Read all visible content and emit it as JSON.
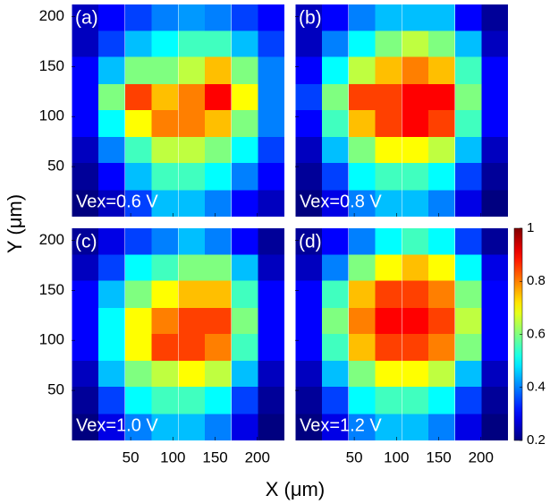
{
  "chart_data": [
    {
      "type": "heatmap",
      "label": "(a)",
      "annotation": "Vex=0.6 V",
      "colormap": "jet",
      "x": [
        -4,
        27,
        59,
        90,
        122,
        153,
        185,
        216
      ],
      "y": [
        199,
        172,
        146,
        119,
        93,
        66,
        40,
        13
      ],
      "values": [
        [
          0.25,
          0.3,
          0.35,
          0.4,
          0.42,
          0.4,
          0.35,
          0.3
        ],
        [
          0.25,
          0.35,
          0.45,
          0.5,
          0.55,
          0.55,
          0.45,
          0.35
        ],
        [
          0.3,
          0.45,
          0.6,
          0.6,
          0.65,
          0.75,
          0.6,
          0.4
        ],
        [
          0.3,
          0.6,
          0.85,
          0.75,
          0.8,
          0.9,
          0.7,
          0.4
        ],
        [
          0.3,
          0.5,
          0.7,
          0.8,
          0.8,
          0.75,
          0.6,
          0.4
        ],
        [
          0.25,
          0.4,
          0.55,
          0.65,
          0.65,
          0.6,
          0.5,
          0.35
        ],
        [
          0.22,
          0.3,
          0.45,
          0.55,
          0.55,
          0.5,
          0.4,
          0.3
        ],
        [
          0.2,
          0.25,
          0.35,
          0.45,
          0.45,
          0.4,
          0.3,
          0.25
        ]
      ],
      "xlim": [
        -20,
        232
      ],
      "ylim": [
        0,
        212
      ],
      "xticks": [
        50,
        100,
        150,
        200
      ],
      "yticks": [
        50,
        100,
        150,
        200
      ]
    },
    {
      "type": "heatmap",
      "label": "(b)",
      "annotation": "Vex=0.8 V",
      "colormap": "jet",
      "x": [
        -4,
        27,
        59,
        90,
        122,
        153,
        185,
        216
      ],
      "y": [
        199,
        172,
        146,
        119,
        93,
        66,
        40,
        13
      ],
      "values": [
        [
          0.25,
          0.3,
          0.4,
          0.45,
          0.45,
          0.45,
          0.3,
          0.22
        ],
        [
          0.25,
          0.4,
          0.5,
          0.6,
          0.65,
          0.6,
          0.45,
          0.25
        ],
        [
          0.3,
          0.5,
          0.65,
          0.75,
          0.8,
          0.75,
          0.55,
          0.3
        ],
        [
          0.35,
          0.6,
          0.85,
          0.85,
          0.9,
          0.9,
          0.6,
          0.3
        ],
        [
          0.3,
          0.55,
          0.75,
          0.85,
          0.9,
          0.85,
          0.55,
          0.3
        ],
        [
          0.25,
          0.45,
          0.6,
          0.7,
          0.7,
          0.65,
          0.45,
          0.25
        ],
        [
          0.22,
          0.35,
          0.5,
          0.55,
          0.55,
          0.5,
          0.35,
          0.22
        ],
        [
          0.2,
          0.28,
          0.4,
          0.45,
          0.45,
          0.4,
          0.28,
          0.2
        ]
      ],
      "xlim": [
        -20,
        232
      ],
      "ylim": [
        0,
        212
      ],
      "xticks": [
        50,
        100,
        150,
        200
      ],
      "yticks": [
        50,
        100,
        150,
        200
      ]
    },
    {
      "type": "heatmap",
      "label": "(c)",
      "annotation": "Vex=1.0 V",
      "colormap": "jet",
      "x": [
        -4,
        27,
        59,
        90,
        122,
        153,
        185,
        216
      ],
      "y": [
        199,
        172,
        146,
        119,
        93,
        66,
        40,
        13
      ],
      "values": [
        [
          0.22,
          0.28,
          0.35,
          0.4,
          0.45,
          0.4,
          0.3,
          0.22
        ],
        [
          0.25,
          0.35,
          0.5,
          0.55,
          0.6,
          0.6,
          0.45,
          0.25
        ],
        [
          0.3,
          0.45,
          0.6,
          0.7,
          0.75,
          0.75,
          0.55,
          0.3
        ],
        [
          0.3,
          0.5,
          0.7,
          0.8,
          0.85,
          0.85,
          0.6,
          0.3
        ],
        [
          0.3,
          0.5,
          0.7,
          0.85,
          0.85,
          0.8,
          0.55,
          0.3
        ],
        [
          0.25,
          0.45,
          0.6,
          0.65,
          0.7,
          0.65,
          0.45,
          0.25
        ],
        [
          0.22,
          0.35,
          0.5,
          0.55,
          0.55,
          0.5,
          0.35,
          0.22
        ],
        [
          0.2,
          0.28,
          0.4,
          0.45,
          0.45,
          0.4,
          0.28,
          0.2
        ]
      ],
      "xlim": [
        -20,
        232
      ],
      "ylim": [
        0,
        212
      ],
      "xticks": [
        50,
        100,
        150,
        200
      ],
      "yticks": [
        50,
        100,
        150,
        200
      ]
    },
    {
      "type": "heatmap",
      "label": "(d)",
      "annotation": "Vex=1.2 V",
      "colormap": "jet",
      "x": [
        -4,
        27,
        59,
        90,
        122,
        153,
        185,
        216
      ],
      "y": [
        199,
        172,
        146,
        119,
        93,
        66,
        40,
        13
      ],
      "values": [
        [
          0.22,
          0.3,
          0.4,
          0.5,
          0.55,
          0.5,
          0.35,
          0.22
        ],
        [
          0.25,
          0.4,
          0.6,
          0.7,
          0.75,
          0.7,
          0.5,
          0.28
        ],
        [
          0.3,
          0.55,
          0.75,
          0.85,
          0.85,
          0.8,
          0.6,
          0.3
        ],
        [
          0.3,
          0.6,
          0.8,
          0.9,
          0.9,
          0.85,
          0.65,
          0.3
        ],
        [
          0.3,
          0.55,
          0.75,
          0.85,
          0.85,
          0.8,
          0.6,
          0.3
        ],
        [
          0.25,
          0.45,
          0.6,
          0.7,
          0.7,
          0.65,
          0.45,
          0.25
        ],
        [
          0.22,
          0.35,
          0.5,
          0.55,
          0.55,
          0.5,
          0.35,
          0.22
        ],
        [
          0.2,
          0.28,
          0.4,
          0.45,
          0.45,
          0.4,
          0.28,
          0.2
        ]
      ],
      "xlim": [
        -20,
        232
      ],
      "ylim": [
        0,
        212
      ],
      "xticks": [
        50,
        100,
        150,
        200
      ],
      "yticks": [
        50,
        100,
        150,
        200
      ]
    }
  ],
  "xlabel": "X (μm)",
  "ylabel": "Y (μm)",
  "colorbar": {
    "lim": [
      0.2,
      1
    ],
    "ticks": [
      0.2,
      0.4,
      0.6,
      0.8,
      1
    ]
  }
}
